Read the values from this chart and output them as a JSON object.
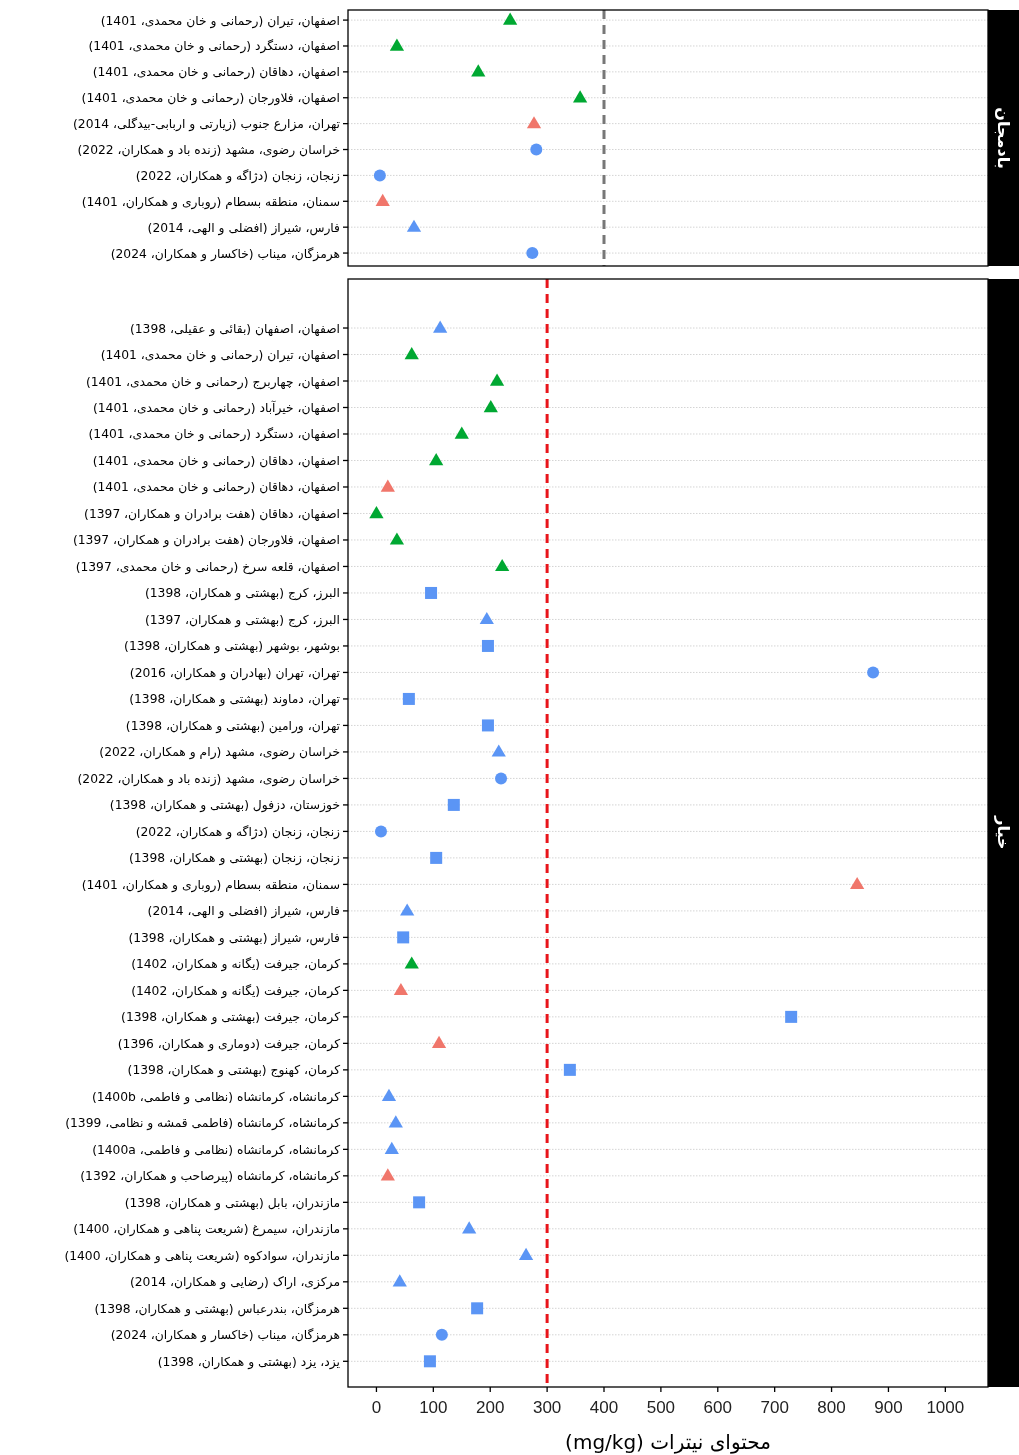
{
  "chart_data": [
    {
      "type": "scatter",
      "title": "بادمجان",
      "orientation": "horizontal",
      "grid": "y",
      "tick_labels": "y",
      "categories": [
        "اصفهان، تیران (رحمانی و خان محمدی، 1401)",
        "اصفهان، دستگرد (رحمانی و خان محمدی، 1401)",
        "اصفهان، دهاقان (رحمانی و خان محمدی، 1401)",
        "اصفهان، فلاورجان (رحمانی و خان محمدی، 1401)",
        "تهران، مزارع جنوب (زیارتی و اربابی-بیدگلی، 2014)",
        "خراسان رضوی، مشهد (زنده باد و همکاران، 2022)",
        "زنجان، زنجان (دژاگه و همکاران، 2022)",
        "سمنان، منطقه بسطام (روباری و همکاران، 1401)",
        "فارس، شیراز (افضلی و الهی، 2014)",
        "هرمزگان، میناب (خاکسار و همکاران، 2024)"
      ],
      "series": [
        {
          "color": "#00a832",
          "marker": "triangle",
          "values": [
            235,
            36,
            179,
            358,
            null,
            null,
            null,
            null,
            null,
            null
          ]
        },
        {
          "color": "#f0766b",
          "marker": "triangle",
          "values": [
            null,
            null,
            null,
            null,
            277,
            null,
            null,
            11,
            null,
            null
          ]
        },
        {
          "color": "#5b95f5",
          "marker": "triangle",
          "values": [
            null,
            null,
            null,
            null,
            null,
            null,
            null,
            null,
            66,
            null
          ]
        },
        {
          "color": "#5b95f5",
          "marker": "circle",
          "values": [
            null,
            null,
            null,
            null,
            null,
            281,
            6,
            null,
            null,
            274
          ]
        }
      ],
      "xlim": [
        -50,
        1075
      ],
      "ref_lines": [
        {
          "axis": "x",
          "value": 400,
          "color": "#777777",
          "line_style": "dashed"
        }
      ]
    },
    {
      "type": "scatter",
      "title": "خیار",
      "orientation": "horizontal",
      "grid": "y",
      "xlabel": "محتوای نیترات (mg/kg)",
      "categories": [
        "اصفهان، اصفهان (بقائی و عقیلی، 1398)",
        "اصفهان، تیران (رحمانی و خان محمدی، 1401)",
        "اصفهان، چهاربرج (رحمانی و خان محمدی، 1401)",
        "اصفهان، خیرآباد (رحمانی و خان محمدی، 1401)",
        "اصفهان، دستگرد (رحمانی و خان محمدی، 1401)",
        "اصفهان، دهاقان (رحمانی و خان محمدی، 1401)",
        "اصفهان، دهاقان (رحمانی و خان محمدی، 1401)",
        "اصفهان، دهاقان (هفت برادران و همکاران، 1397)",
        "اصفهان، فلاورجان (هفت برادران و همکاران، 1397)",
        "اصفهان، قلعه سرخ (رحمانی و خان محمدی، 1397)",
        "البرز، کرج (بهشتی و همکاران، 1398)",
        "البرز، کرج (بهشتی و همکاران، 1397)",
        "بوشهر، بوشهر (بهشتی و همکاران، 1398)",
        "تهران، تهران (بهادران و همکاران، 2016)",
        "تهران، دماوند (بهشتی و همکاران، 1398)",
        "تهران، ورامین (بهشتی و همکاران، 1398)",
        "خراسان رضوی، مشهد (رام و همکاران، 2022)",
        "خراسان رضوی، مشهد (زنده باد و همکاران، 2022)",
        "خوزستان، دزفول (بهشتی و همکاران، 1398)",
        "زنجان، زنجان (دژاگه و همکاران، 2022)",
        "زنجان، زنجان (بهشتی و همکاران، 1398)",
        "سمنان، منطقه بسطام (روباری و همکاران، 1401)",
        "فارس، شیراز (افضلی و الهی، 2014)",
        "فارس، شیراز (بهشتی و همکاران، 1398)",
        "کرمان، جیرفت (یگانه و همکاران، 1402)",
        "کرمان، جیرفت (یگانه و همکاران، 1402)",
        "کرمان، جیرفت (بهشتی و همکاران، 1398)",
        "کرمان، جیرفت (دوماری و همکاران، 1396)",
        "کرمان، کهنوج (بهشتی و همکاران، 1398)",
        "کرمانشاه، کرمانشاه (نظامی و فاطمی، 1400b)",
        "کرمانشاه، کرمانشاه (فاطمی قمشه و نظامی، 1399)",
        "کرمانشاه، کرمانشاه (نظامی و فاطمی، 1400a)",
        "کرمانشاه، کرمانشاه (پیرصاحب و همکاران، 1392)",
        "مازندران، بابل (بهشتی و همکاران، 1398)",
        "مازندران، سیمرغ (شریعت پناهی و همکاران، 1400)",
        "مازندران، سوادکوه (شریعت پناهی و همکاران، 1400)",
        "مرکزی، اراک (رضایی و همکاران، 2014)",
        "هرمزگان، بندرعباس (بهشتی و همکاران، 1398)",
        "هرمزگان، میناب (خاکسار و همکاران، 2024)",
        "یزد، یزد (بهشتی و همکاران، 1398)"
      ],
      "series": [
        {
          "color": "#00a832",
          "marker": "triangle",
          "values": [
            null,
            62,
            212,
            201,
            150,
            105,
            null,
            0,
            36,
            221,
            null,
            null,
            null,
            null,
            null,
            null,
            null,
            null,
            null,
            null,
            null,
            null,
            null,
            null,
            62,
            null,
            null,
            null,
            null,
            null,
            null,
            null,
            null,
            null,
            null,
            null,
            null,
            null,
            null,
            null
          ]
        },
        {
          "color": "#f0766b",
          "marker": "triangle",
          "values": [
            null,
            null,
            null,
            null,
            null,
            null,
            20,
            null,
            null,
            null,
            null,
            null,
            null,
            null,
            null,
            null,
            null,
            null,
            null,
            null,
            null,
            845,
            null,
            null,
            null,
            43,
            null,
            110,
            null,
            null,
            null,
            null,
            20,
            null,
            null,
            null,
            null,
            null,
            null,
            null
          ]
        },
        {
          "color": "#5b95f5",
          "marker": "triangle",
          "values": [
            112,
            null,
            null,
            null,
            null,
            null,
            null,
            null,
            null,
            null,
            null,
            194,
            null,
            null,
            null,
            null,
            215,
            null,
            null,
            null,
            null,
            null,
            54,
            null,
            null,
            null,
            null,
            null,
            null,
            22,
            34,
            27,
            null,
            null,
            163,
            263,
            41,
            null,
            null,
            null
          ]
        },
        {
          "color": "#5b95f5",
          "marker": "circle",
          "values": [
            null,
            null,
            null,
            null,
            null,
            null,
            null,
            null,
            null,
            null,
            null,
            null,
            null,
            873,
            null,
            null,
            null,
            219,
            null,
            8,
            null,
            null,
            null,
            null,
            null,
            null,
            null,
            null,
            null,
            null,
            null,
            null,
            null,
            null,
            null,
            null,
            null,
            null,
            115,
            null
          ]
        },
        {
          "color": "#5b95f5",
          "marker": "square",
          "values": [
            null,
            null,
            null,
            null,
            null,
            null,
            null,
            null,
            null,
            null,
            96,
            null,
            196,
            null,
            57,
            196,
            null,
            null,
            136,
            null,
            105,
            null,
            null,
            47,
            null,
            null,
            729,
            null,
            340,
            null,
            null,
            null,
            null,
            75,
            null,
            null,
            null,
            177,
            null,
            94
          ]
        }
      ],
      "xlim": [
        -50,
        1075
      ],
      "xticks": [
        0,
        100,
        200,
        300,
        400,
        500,
        600,
        700,
        800,
        900,
        1000
      ],
      "ref_lines": [
        {
          "axis": "x",
          "value": 300,
          "color": "#e8141a",
          "line_style": "dashed"
        }
      ]
    }
  ]
}
